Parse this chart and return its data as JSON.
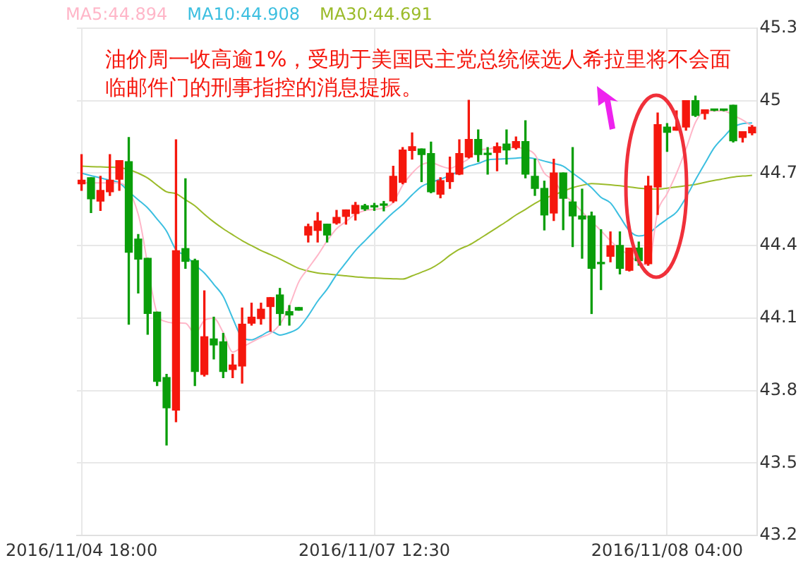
{
  "chart_data": {
    "type": "candlestick",
    "categories": [
      "2016/11/04 18:00",
      null,
      null,
      null,
      null,
      null,
      null,
      null,
      null,
      null,
      null,
      null,
      null,
      null,
      null,
      null,
      null,
      null,
      null,
      null,
      null,
      null,
      null,
      null,
      null,
      null,
      null,
      null,
      null,
      null,
      null,
      "2016/11/07 12:30",
      null,
      null,
      null,
      null,
      null,
      null,
      null,
      null,
      null,
      null,
      null,
      null,
      null,
      null,
      null,
      null,
      null,
      null,
      null,
      null,
      null,
      null,
      null,
      null,
      null,
      null,
      null,
      null,
      null,
      null,
      "2016/11/08 04:00",
      null,
      null,
      null,
      null,
      null,
      null,
      null,
      null,
      null
    ],
    "ohlc": [
      [
        44.656,
        44.777,
        44.629,
        44.671
      ],
      [
        44.681,
        44.681,
        44.537,
        44.594
      ],
      [
        44.584,
        44.687,
        44.546,
        44.629
      ],
      [
        44.623,
        44.777,
        44.608,
        44.671
      ],
      [
        44.675,
        44.752,
        44.629,
        44.752
      ],
      [
        44.748,
        44.848,
        44.075,
        44.373
      ],
      [
        44.427,
        44.446,
        44.204,
        44.344
      ],
      [
        44.348,
        44.348,
        44.033,
        44.119
      ],
      [
        44.125,
        44.125,
        43.821,
        43.838
      ],
      [
        43.854,
        43.867,
        43.575,
        43.729
      ],
      [
        43.719,
        44.838,
        43.671,
        44.379
      ],
      [
        44.388,
        44.677,
        44.306,
        44.335
      ],
      [
        44.338,
        44.344,
        43.821,
        43.879
      ],
      [
        43.867,
        44.213,
        43.86,
        44.023
      ],
      [
        44.014,
        44.104,
        43.931,
        43.989
      ],
      [
        44.002,
        44.037,
        43.854,
        43.879
      ],
      [
        43.887,
        43.95,
        43.854,
        43.906
      ],
      [
        43.902,
        44.142,
        43.831,
        44.075
      ],
      [
        44.079,
        44.162,
        44.071,
        44.104
      ],
      [
        44.098,
        44.162,
        44.075,
        44.137
      ],
      [
        44.148,
        44.185,
        44.046,
        44.185
      ],
      [
        44.196,
        44.223,
        44.071,
        44.119
      ],
      [
        44.127,
        44.152,
        44.071,
        44.113
      ],
      [
        44.144,
        44.144,
        44.133,
        44.133
      ],
      [
        44.444,
        44.489,
        44.415,
        44.479
      ],
      [
        44.463,
        44.537,
        44.415,
        44.502
      ],
      [
        44.489,
        44.489,
        44.415,
        44.444
      ],
      [
        44.494,
        44.546,
        44.489,
        44.517
      ],
      [
        44.521,
        44.548,
        44.489,
        44.548
      ],
      [
        44.533,
        44.579,
        44.506,
        44.567
      ],
      [
        44.565,
        44.571,
        44.546,
        44.552
      ],
      [
        44.565,
        44.575,
        44.546,
        44.56
      ],
      [
        44.569,
        44.583,
        44.544,
        44.567
      ],
      [
        44.585,
        44.729,
        44.579,
        44.687
      ],
      [
        44.662,
        44.806,
        44.656,
        44.796
      ],
      [
        44.794,
        44.867,
        44.758,
        44.81
      ],
      [
        44.8,
        44.8,
        44.665,
        44.777
      ],
      [
        44.781,
        44.829,
        44.619,
        44.623
      ],
      [
        44.613,
        44.681,
        44.598,
        44.669
      ],
      [
        44.665,
        44.767,
        44.637,
        44.7
      ],
      [
        44.696,
        44.838,
        44.694,
        44.781
      ],
      [
        44.767,
        45.002,
        44.763,
        44.84
      ],
      [
        44.84,
        44.879,
        44.748,
        44.777
      ],
      [
        44.783,
        44.806,
        44.696,
        44.777
      ],
      [
        44.786,
        44.825,
        44.71,
        44.81
      ],
      [
        44.821,
        44.879,
        44.738,
        44.796
      ],
      [
        44.806,
        44.85,
        44.8,
        44.831
      ],
      [
        44.831,
        44.917,
        44.681,
        44.696
      ],
      [
        44.687,
        44.758,
        44.608,
        44.637
      ],
      [
        44.637,
        44.667,
        44.465,
        44.527
      ],
      [
        44.535,
        44.758,
        44.504,
        44.701
      ],
      [
        44.701,
        44.701,
        44.466,
        44.596
      ],
      [
        44.581,
        44.806,
        44.396,
        44.523
      ],
      [
        44.523,
        44.634,
        44.348,
        44.51
      ],
      [
        44.523,
        44.539,
        44.119,
        44.306
      ],
      [
        44.331,
        44.466,
        44.218,
        44.325
      ],
      [
        44.356,
        44.457,
        44.333,
        44.4
      ],
      [
        44.401,
        44.457,
        44.283,
        44.306
      ],
      [
        44.298,
        44.39,
        44.295,
        44.39
      ],
      [
        44.39,
        44.415,
        44.319,
        44.338
      ],
      [
        44.325,
        44.687,
        44.319,
        44.647
      ],
      [
        44.643,
        44.949,
        44.529,
        44.901
      ],
      [
        44.891,
        44.905,
        44.79,
        44.869
      ],
      [
        44.878,
        44.958,
        44.878,
        44.891
      ],
      [
        44.891,
        45.0,
        44.878,
        45.0
      ],
      [
        45.0,
        45.019,
        44.935,
        44.939
      ],
      [
        44.947,
        44.962,
        44.924,
        44.962
      ],
      [
        44.96,
        44.962,
        44.958,
        44.96
      ],
      [
        44.96,
        44.962,
        44.958,
        44.96
      ],
      [
        44.981,
        44.981,
        44.829,
        44.834
      ],
      [
        44.848,
        44.872,
        44.829,
        44.872
      ],
      [
        44.867,
        44.897,
        44.859,
        44.891
      ]
    ],
    "colors": [
      "#f5170d",
      "#0a9e0a",
      "#f5170d",
      "#f5170d",
      "#f5170d",
      "#0a9e0a",
      "#0a9e0a",
      "#0a9e0a",
      "#0a9e0a",
      "#0a9e0a",
      "#f5170d",
      "#0a9e0a",
      "#0a9e0a",
      "#f5170d",
      "#0a9e0a",
      "#0a9e0a",
      "#f5170d",
      "#f5170d",
      "#f5170d",
      "#f5170d",
      "#f5170d",
      "#0a9e0a",
      "#0a9e0a",
      "#0a9e0a",
      "#f5170d",
      "#f5170d",
      "#0a9e0a",
      "#f5170d",
      "#f5170d",
      "#f5170d",
      "#0a9e0a",
      "#0a9e0a",
      "#0a9e0a",
      "#f5170d",
      "#f5170d",
      "#f5170d",
      "#0a9e0a",
      "#0a9e0a",
      "#f5170d",
      "#f5170d",
      "#f5170d",
      "#f5170d",
      "#0a9e0a",
      "#0a9e0a",
      "#f5170d",
      "#0a9e0a",
      "#f5170d",
      "#0a9e0a",
      "#0a9e0a",
      "#0a9e0a",
      "#f5170d",
      "#0a9e0a",
      "#0a9e0a",
      "#0a9e0a",
      "#0a9e0a",
      "#0a9e0a",
      "#f5170d",
      "#0a9e0a",
      "#f5170d",
      "#0a9e0a",
      "#f5170d",
      "#f5170d",
      "#0a9e0a",
      "#f5170d",
      "#f5170d",
      "#0a9e0a",
      "#f5170d",
      "#0a9e0a",
      "#0a9e0a",
      "#0a9e0a",
      "#f5170d",
      "#f5170d"
    ],
    "series": [
      {
        "name": "MA5:44.894",
        "type": "line",
        "color": "#ffb6c8",
        "values": [
          44.66,
          44.66,
          44.66,
          44.66,
          44.66,
          null,
          44.53,
          null,
          44.12,
          44.085,
          44.08,
          44.079,
          44.037,
          44.09,
          44.1,
          44.04,
          43.96,
          43.98,
          44.0,
          44.02,
          44.037,
          44.075,
          44.15,
          44.25,
          44.306,
          44.36,
          44.42,
          44.47,
          44.5,
          44.53,
          44.545,
          44.55,
          44.556,
          44.579,
          44.65,
          44.7,
          44.735,
          44.744,
          44.73,
          44.72,
          44.738,
          44.76,
          44.796,
          44.8,
          44.806,
          44.806,
          44.806,
          44.8,
          44.777,
          44.7,
          44.67,
          44.615,
          44.58,
          44.54,
          44.5,
          44.462,
          44.42,
          44.386,
          44.36,
          44.33,
          44.32,
          44.54,
          44.615,
          44.7,
          44.8,
          44.91,
          44.958,
          44.958,
          44.958,
          44.94,
          44.92,
          44.894
        ]
      },
      {
        "name": "MA10:44.908",
        "type": "line",
        "color": "#3cbfe0",
        "values": [
          44.7,
          44.69,
          44.68,
          44.671,
          44.66,
          44.623,
          44.59,
          44.556,
          44.51,
          44.46,
          44.383,
          44.36,
          44.32,
          44.287,
          44.24,
          44.19,
          44.1,
          44.02,
          44.01,
          44.027,
          44.046,
          44.03,
          44.04,
          44.06,
          44.11,
          44.17,
          44.22,
          44.28,
          44.33,
          44.38,
          44.42,
          44.46,
          44.5,
          44.537,
          44.57,
          44.61,
          44.645,
          44.662,
          44.675,
          44.69,
          44.71,
          44.729,
          44.74,
          44.755,
          44.758,
          44.76,
          44.762,
          44.765,
          44.76,
          44.75,
          44.74,
          44.729,
          44.7,
          44.672,
          44.64,
          44.6,
          44.577,
          44.52,
          44.462,
          44.44,
          44.45,
          44.481,
          44.51,
          44.539,
          44.6,
          44.672,
          44.74,
          44.806,
          44.85,
          44.89,
          44.905,
          44.908
        ]
      },
      {
        "name": "MA30:44.691",
        "type": "line",
        "color": "#9bbb2a",
        "values": [
          44.729,
          44.727,
          44.726,
          44.725,
          44.723,
          44.715,
          44.7,
          44.68,
          44.65,
          44.623,
          44.615,
          44.59,
          44.565,
          44.53,
          44.498,
          44.47,
          44.445,
          44.421,
          44.4,
          44.38,
          44.363,
          44.345,
          44.325,
          44.306,
          44.295,
          44.287,
          44.283,
          44.279,
          44.275,
          44.271,
          44.268,
          44.266,
          44.264,
          44.263,
          44.262,
          44.275,
          44.29,
          44.306,
          44.33,
          44.36,
          44.385,
          44.402,
          44.425,
          44.45,
          44.475,
          44.5,
          44.527,
          44.55,
          44.575,
          44.595,
          44.61,
          44.625,
          44.64,
          44.65,
          44.657,
          44.655,
          44.652,
          44.648,
          44.643,
          44.638,
          44.635,
          44.634,
          44.638,
          44.643,
          44.648,
          44.653,
          44.662,
          44.67,
          44.677,
          44.684,
          44.688,
          44.691
        ]
      }
    ],
    "ylim": [
      43.2,
      45.3
    ],
    "yticks": [
      43.2,
      43.5,
      43.8,
      44.1,
      44.4,
      44.7,
      45,
      45.3
    ],
    "annotations": [
      "油价周一收高逾1%，受助于美国民主党总统候选人希拉里将不会面临邮件门的刑事指控的消息提振。"
    ],
    "grid": true,
    "legend": "top left",
    "marker": "none"
  }
}
